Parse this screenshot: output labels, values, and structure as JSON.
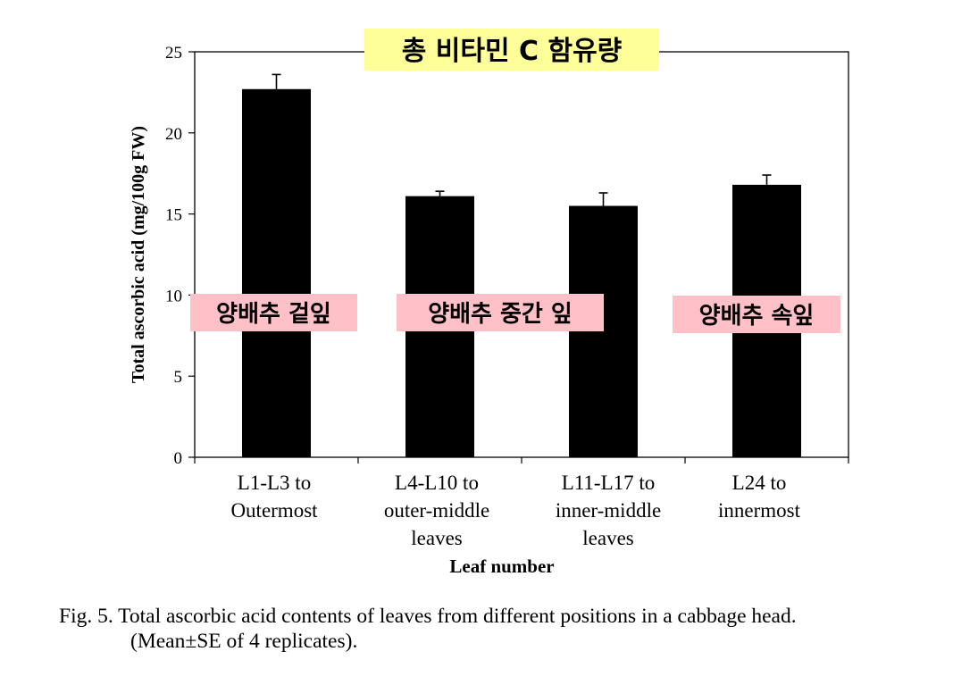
{
  "chart_data": {
    "type": "bar",
    "title": "총 비타민 C 함유량",
    "categories": [
      [
        "L1-L3 to",
        "Outermost"
      ],
      [
        "L4-L10 to",
        "outer-middle",
        "leaves"
      ],
      [
        "L11-L17 to",
        "inner-middle",
        "leaves"
      ],
      [
        "L24 to",
        "innermost"
      ]
    ],
    "values": [
      22.7,
      16.1,
      15.5,
      16.8
    ],
    "errors": [
      0.9,
      0.3,
      0.8,
      0.6
    ],
    "bar_labels": [
      "양배추 겉잎",
      "양배추 중간 잎",
      "",
      "양배추 속잎"
    ],
    "xlabel": "Leaf number",
    "ylabel": "Total ascorbic acid (mg/100g FW)",
    "ylim": [
      0,
      25
    ],
    "yticks": [
      0,
      5,
      10,
      15,
      20,
      25
    ],
    "bar_color": "#000000",
    "title_highlight_color": "#ffff99",
    "label_highlight_color": "#ffc0c8",
    "grid": false
  },
  "caption": {
    "line1": "Fig. 5. Total ascorbic acid contents of leaves from different positions in a cabbage head.",
    "line2": "(Mean±SE of 4 replicates)."
  }
}
